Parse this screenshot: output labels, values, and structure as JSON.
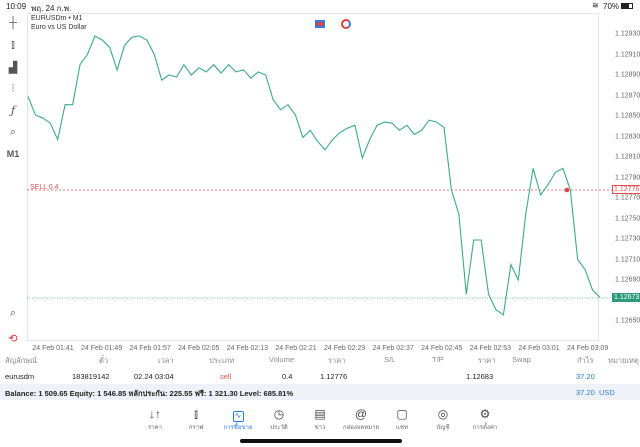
{
  "status": {
    "time": "10:09",
    "date": "พฤ. 24 ก.พ.",
    "battery": "70%"
  },
  "chart": {
    "symbol": "EURUSDm • M1",
    "description": "Euro vs US Dollar",
    "y_ticks": [
      "1.12930",
      "1.12910",
      "1.12890",
      "1.12870",
      "1.12850",
      "1.12830",
      "1.12810",
      "1.12790",
      "1.12770",
      "1.12750",
      "1.12730",
      "1.12710",
      "1.12690",
      "1.12650"
    ],
    "x_ticks": [
      "24 Feb 01:41",
      "24 Feb 01:49",
      "24 Feb 01:57",
      "24 Feb 02:05",
      "24 Feb 02:13",
      "24 Feb 02:21",
      "24 Feb 02:29",
      "24 Feb 02:37",
      "24 Feb 02:45",
      "24 Feb 02:53",
      "24 Feb 03:01",
      "24 Feb 03:09"
    ],
    "sell_label": "SELL 0.4",
    "sell_price": "1.12776",
    "current_price": "1.12673",
    "line_color": "#3daa86",
    "sell_color": "#e05050"
  },
  "chart_data": {
    "type": "line",
    "ylim": [
      1.1264,
      1.1294
    ],
    "values": [
      1.12869,
      1.12851,
      1.12848,
      1.12843,
      1.12827,
      1.12861,
      1.12861,
      1.129,
      1.1291,
      1.12928,
      1.12924,
      1.12917,
      1.12895,
      1.12919,
      1.12927,
      1.12928,
      1.12924,
      1.1291,
      1.12885,
      1.1289,
      1.12888,
      1.129,
      1.1289,
      1.12897,
      1.12893,
      1.129,
      1.12892,
      1.129,
      1.12893,
      1.12895,
      1.12887,
      1.12893,
      1.1289,
      1.12866,
      1.12856,
      1.12861,
      1.12851,
      1.12829,
      1.12836,
      1.12825,
      1.12817,
      1.12827,
      1.12834,
      1.12838,
      1.12841,
      1.12809,
      1.12827,
      1.12841,
      1.12844,
      1.12843,
      1.12836,
      1.12841,
      1.12832,
      1.12836,
      1.12846,
      1.12844,
      1.12839,
      1.12778,
      1.12754,
      1.12676,
      1.12729,
      1.12729,
      1.12676,
      1.12661,
      1.12656,
      1.12705,
      1.1269,
      1.12754,
      1.12799,
      1.12773,
      1.12783,
      1.12795,
      1.12799,
      1.12778,
      1.1271,
      1.127,
      1.1268,
      1.12673
    ]
  },
  "table": {
    "headers": [
      "สัญลักษณ์",
      "ตั๋ว",
      "เวลา",
      "ประเภท",
      "Volume",
      "ราคา",
      "S/L",
      "T/P",
      "ราคา",
      "Swap",
      "กำไร",
      "หมายเหตุ"
    ],
    "row": {
      "symbol": "eurusdm",
      "ticket": "183819142",
      "time": "02.24 03:04",
      "type": "sell",
      "volume": "0.4",
      "open_price": "1.12776",
      "sl": "",
      "tp": "",
      "price": "1.12683",
      "swap": "",
      "profit": "37.20",
      "comment": ""
    },
    "balance": "Balance: 1 509.65 Equity: 1 546.85 หลักประกัน: 225.55 ฟรี: 1 321.30 Level: 685.81%",
    "total_profit": "37.20",
    "currency": "USD"
  },
  "nav": [
    {
      "label": "ราคา",
      "icon": "↓↑"
    },
    {
      "label": "กราฟ",
      "icon": "⫾"
    },
    {
      "label": "การซื้อขาย",
      "icon": "📈"
    },
    {
      "label": "ประวัติ",
      "icon": "◷"
    },
    {
      "label": "ข่าว",
      "icon": "▤"
    },
    {
      "label": "กล่องจดหมาย",
      "icon": "@"
    },
    {
      "label": "แชท",
      "icon": "▢"
    },
    {
      "label": "บัญชี",
      "icon": "◎"
    },
    {
      "label": "การตั้งค่า",
      "icon": "⚙"
    }
  ],
  "toolbar": {
    "timeframe": "M1"
  }
}
